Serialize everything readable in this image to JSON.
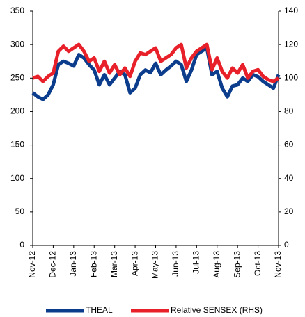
{
  "chart_data": {
    "type": "line",
    "categories": [
      "Nov-12",
      null,
      null,
      null,
      "Dec-12",
      null,
      null,
      null,
      "Jan-13",
      null,
      null,
      null,
      "Feb-13",
      null,
      null,
      null,
      "Mar-13",
      null,
      null,
      null,
      "Apr-13",
      null,
      null,
      null,
      "May-13",
      null,
      null,
      null,
      "Jun-13",
      null,
      null,
      null,
      "Jul-13",
      null,
      null,
      null,
      "Aug-13",
      null,
      null,
      null,
      "Sep-13",
      null,
      null,
      null,
      "Oct-13",
      null,
      null,
      null,
      "Nov-13"
    ],
    "series": [
      {
        "name": "THEAL",
        "color": "#0b3d8c",
        "values": [
          228,
          222,
          218,
          225,
          240,
          270,
          275,
          272,
          268,
          285,
          280,
          270,
          262,
          240,
          255,
          240,
          250,
          260,
          255,
          228,
          235,
          255,
          262,
          258,
          272,
          255,
          262,
          268,
          275,
          270,
          245,
          262,
          285,
          290,
          295,
          255,
          260,
          235,
          222,
          238,
          240,
          250,
          245,
          255,
          252,
          245,
          240,
          235,
          255
        ]
      },
      {
        "name": "Relative SENSEX (RHS)",
        "color": "#e8202a",
        "axis": "y2",
        "values": [
          100,
          101,
          98,
          101,
          103,
          116,
          119,
          116,
          118,
          120,
          116,
          110,
          112,
          104,
          110,
          103,
          108,
          102,
          106,
          101,
          110,
          115,
          114,
          116,
          118,
          110,
          112,
          114,
          118,
          120,
          106,
          112,
          116,
          118,
          120,
          105,
          112,
          104,
          100,
          106,
          103,
          108,
          100,
          104,
          105,
          101,
          99,
          98,
          100
        ]
      }
    ],
    "ylim": [
      0,
      350
    ],
    "yticks": [
      0,
      50,
      100,
      150,
      200,
      250,
      300,
      350
    ],
    "y2lim": [
      0,
      140
    ],
    "y2ticks": [
      0,
      20,
      40,
      60,
      80,
      100,
      120,
      140
    ],
    "legend": "bottom"
  }
}
